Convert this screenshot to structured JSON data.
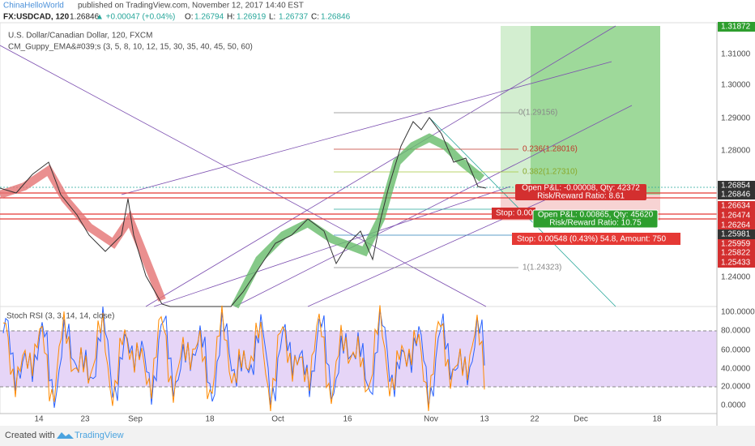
{
  "header": {
    "author": "ChinaHelloWorld",
    "published": "published on TradingView.com, November 12, 2017 14:40 EST"
  },
  "symbol_bar": {
    "symbol": "FX:USDCAD, 120",
    "price": "1.26846",
    "change": "▲ +0.00047 (+0.04%)",
    "ohlc": [
      {
        "label": "O:",
        "value": "1.26794"
      },
      {
        "label": "H:",
        "value": "1.26919"
      },
      {
        "label": "L:",
        "value": "1.26737"
      },
      {
        "label": "C:",
        "value": "1.26846"
      }
    ]
  },
  "main_pane": {
    "title": "U.S. Dollar/Canadian Dollar, 120, FXCM",
    "indicator": "CM_Guppy_EMA&#039;s (3, 5, 8, 10, 12, 15, 30, 35, 40, 45, 50, 60)",
    "price_axis": [
      "1.31872",
      "1.31000",
      "1.30000",
      "1.29000",
      "1.28000",
      "1.26854",
      "1.26846",
      "1.26634",
      "1.26474",
      "1.26264",
      "1.25981",
      "1.25959",
      "1.25822",
      "1.25433",
      "1.24000"
    ],
    "fib": [
      "0(1.29156)",
      "0.236(1.28016)",
      "0.382(1.27310)",
      "1(1.24323)"
    ],
    "short_position": [
      "Open P&L: -0.00008, Qty: 42372",
      "Risk/Reward Ratio: 8.61"
    ],
    "long_position": [
      "Open P&L: 0.00865, Qty: 45620",
      "Risk/Reward Ratio: 10.75"
    ],
    "stops": [
      "Stop: 0.00",
      "Stop: 0.00548 (0.43%) 54.8, Amount: 750"
    ]
  },
  "stoch_pane": {
    "title": "Stoch RSI (3, 3, 14, 14, close)",
    "axis": [
      "100.0000",
      "80.0000",
      "60.0000",
      "40.0000",
      "20.0000",
      "0.0000"
    ]
  },
  "time_axis": [
    "14",
    "23",
    "Sep",
    "18",
    "Oct",
    "16",
    "Nov",
    "13",
    "22",
    "Dec",
    "18"
  ],
  "footer": {
    "created": "Created with",
    "brand": "TradingView"
  }
}
